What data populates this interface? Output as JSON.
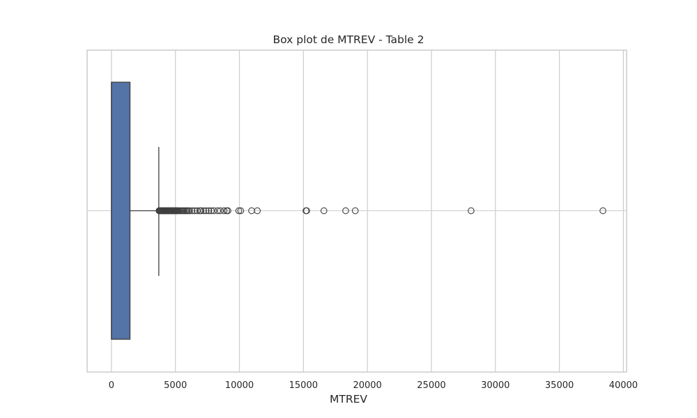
{
  "chart_data": {
    "type": "box",
    "title": "Box plot de MTREV - Table 2",
    "xlabel": "MTREV",
    "ylabel": "",
    "orientation": "horizontal",
    "xlim": [
      -1900,
      40250
    ],
    "xticks": [
      0,
      5000,
      10000,
      15000,
      20000,
      25000,
      30000,
      35000,
      40000
    ],
    "grid": true,
    "box": {
      "min": 0,
      "q1": 0,
      "median": 0,
      "q3": 1450,
      "whisker_low": 0,
      "whisker_high": 3700,
      "fill_color": "#5473a6",
      "edge_color": "#3f3f3f"
    },
    "outliers": [
      3720,
      3760,
      3800,
      3850,
      3900,
      3950,
      4000,
      4050,
      4100,
      4150,
      4200,
      4250,
      4300,
      4350,
      4400,
      4450,
      4500,
      4550,
      4600,
      4650,
      4700,
      4750,
      4800,
      4850,
      4900,
      4950,
      5000,
      5050,
      5100,
      5150,
      5200,
      5300,
      5400,
      5500,
      5600,
      5700,
      5800,
      5900,
      6000,
      6100,
      6300,
      6500,
      6700,
      6900,
      7000,
      7200,
      7400,
      7600,
      7800,
      8000,
      8300,
      8500,
      8800,
      9000,
      9100,
      9950,
      10100,
      10950,
      11400,
      15200,
      15250,
      16600,
      18300,
      19050,
      28100,
      38400
    ]
  }
}
